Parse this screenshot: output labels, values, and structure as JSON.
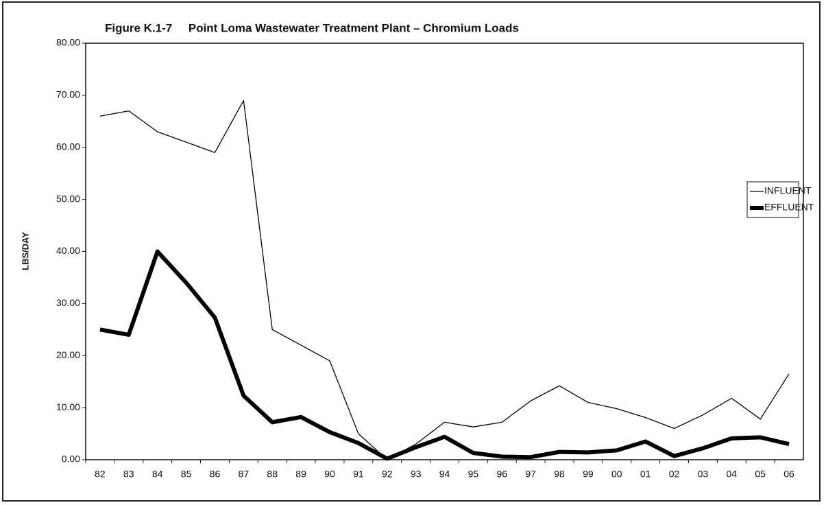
{
  "chart_data": {
    "type": "line",
    "title": "Figure K.1-7     Point Loma Wastewater Treatment Plant – Chromium Loads",
    "y_label": "LBS/DAY",
    "categories": [
      "82",
      "83",
      "84",
      "85",
      "86",
      "87",
      "88",
      "89",
      "90",
      "91",
      "92",
      "93",
      "94",
      "95",
      "96",
      "97",
      "98",
      "99",
      "00",
      "01",
      "02",
      "03",
      "04",
      "05",
      "06"
    ],
    "series": [
      {
        "name": "INFLUENT",
        "color": "#000000",
        "width": 1.3,
        "values": [
          66,
          67,
          63,
          61,
          59,
          69,
          25,
          22,
          19,
          5,
          0,
          3,
          7.2,
          6.3,
          7.2,
          11.3,
          14.2,
          11,
          9.8,
          8.1,
          6,
          8.6,
          11.8,
          7.8,
          16.5
        ]
      },
      {
        "name": "EFFLUENT",
        "color": "#000000",
        "width": 6,
        "values": [
          25,
          24,
          40,
          34,
          27.3,
          12.3,
          7.2,
          8.2,
          5.3,
          3.2,
          0.2,
          2.4,
          4.4,
          1.3,
          0.6,
          0.5,
          1.5,
          1.4,
          1.8,
          3.5,
          0.7,
          2.2,
          4.1,
          4.3,
          3.0
        ]
      }
    ],
    "ylim": [
      0,
      80
    ],
    "yticks": [
      {
        "value": 0,
        "label": "0.00"
      },
      {
        "value": 10,
        "label": "10.00"
      },
      {
        "value": 20,
        "label": "20.00"
      },
      {
        "value": 30,
        "label": "30.00"
      },
      {
        "value": 40,
        "label": "40.00"
      },
      {
        "value": 50,
        "label": "50.00"
      },
      {
        "value": 60,
        "label": "60.00"
      },
      {
        "value": 70,
        "label": "70.00"
      },
      {
        "value": 80,
        "label": "80.00"
      }
    ],
    "grid": false,
    "legend": "right"
  }
}
